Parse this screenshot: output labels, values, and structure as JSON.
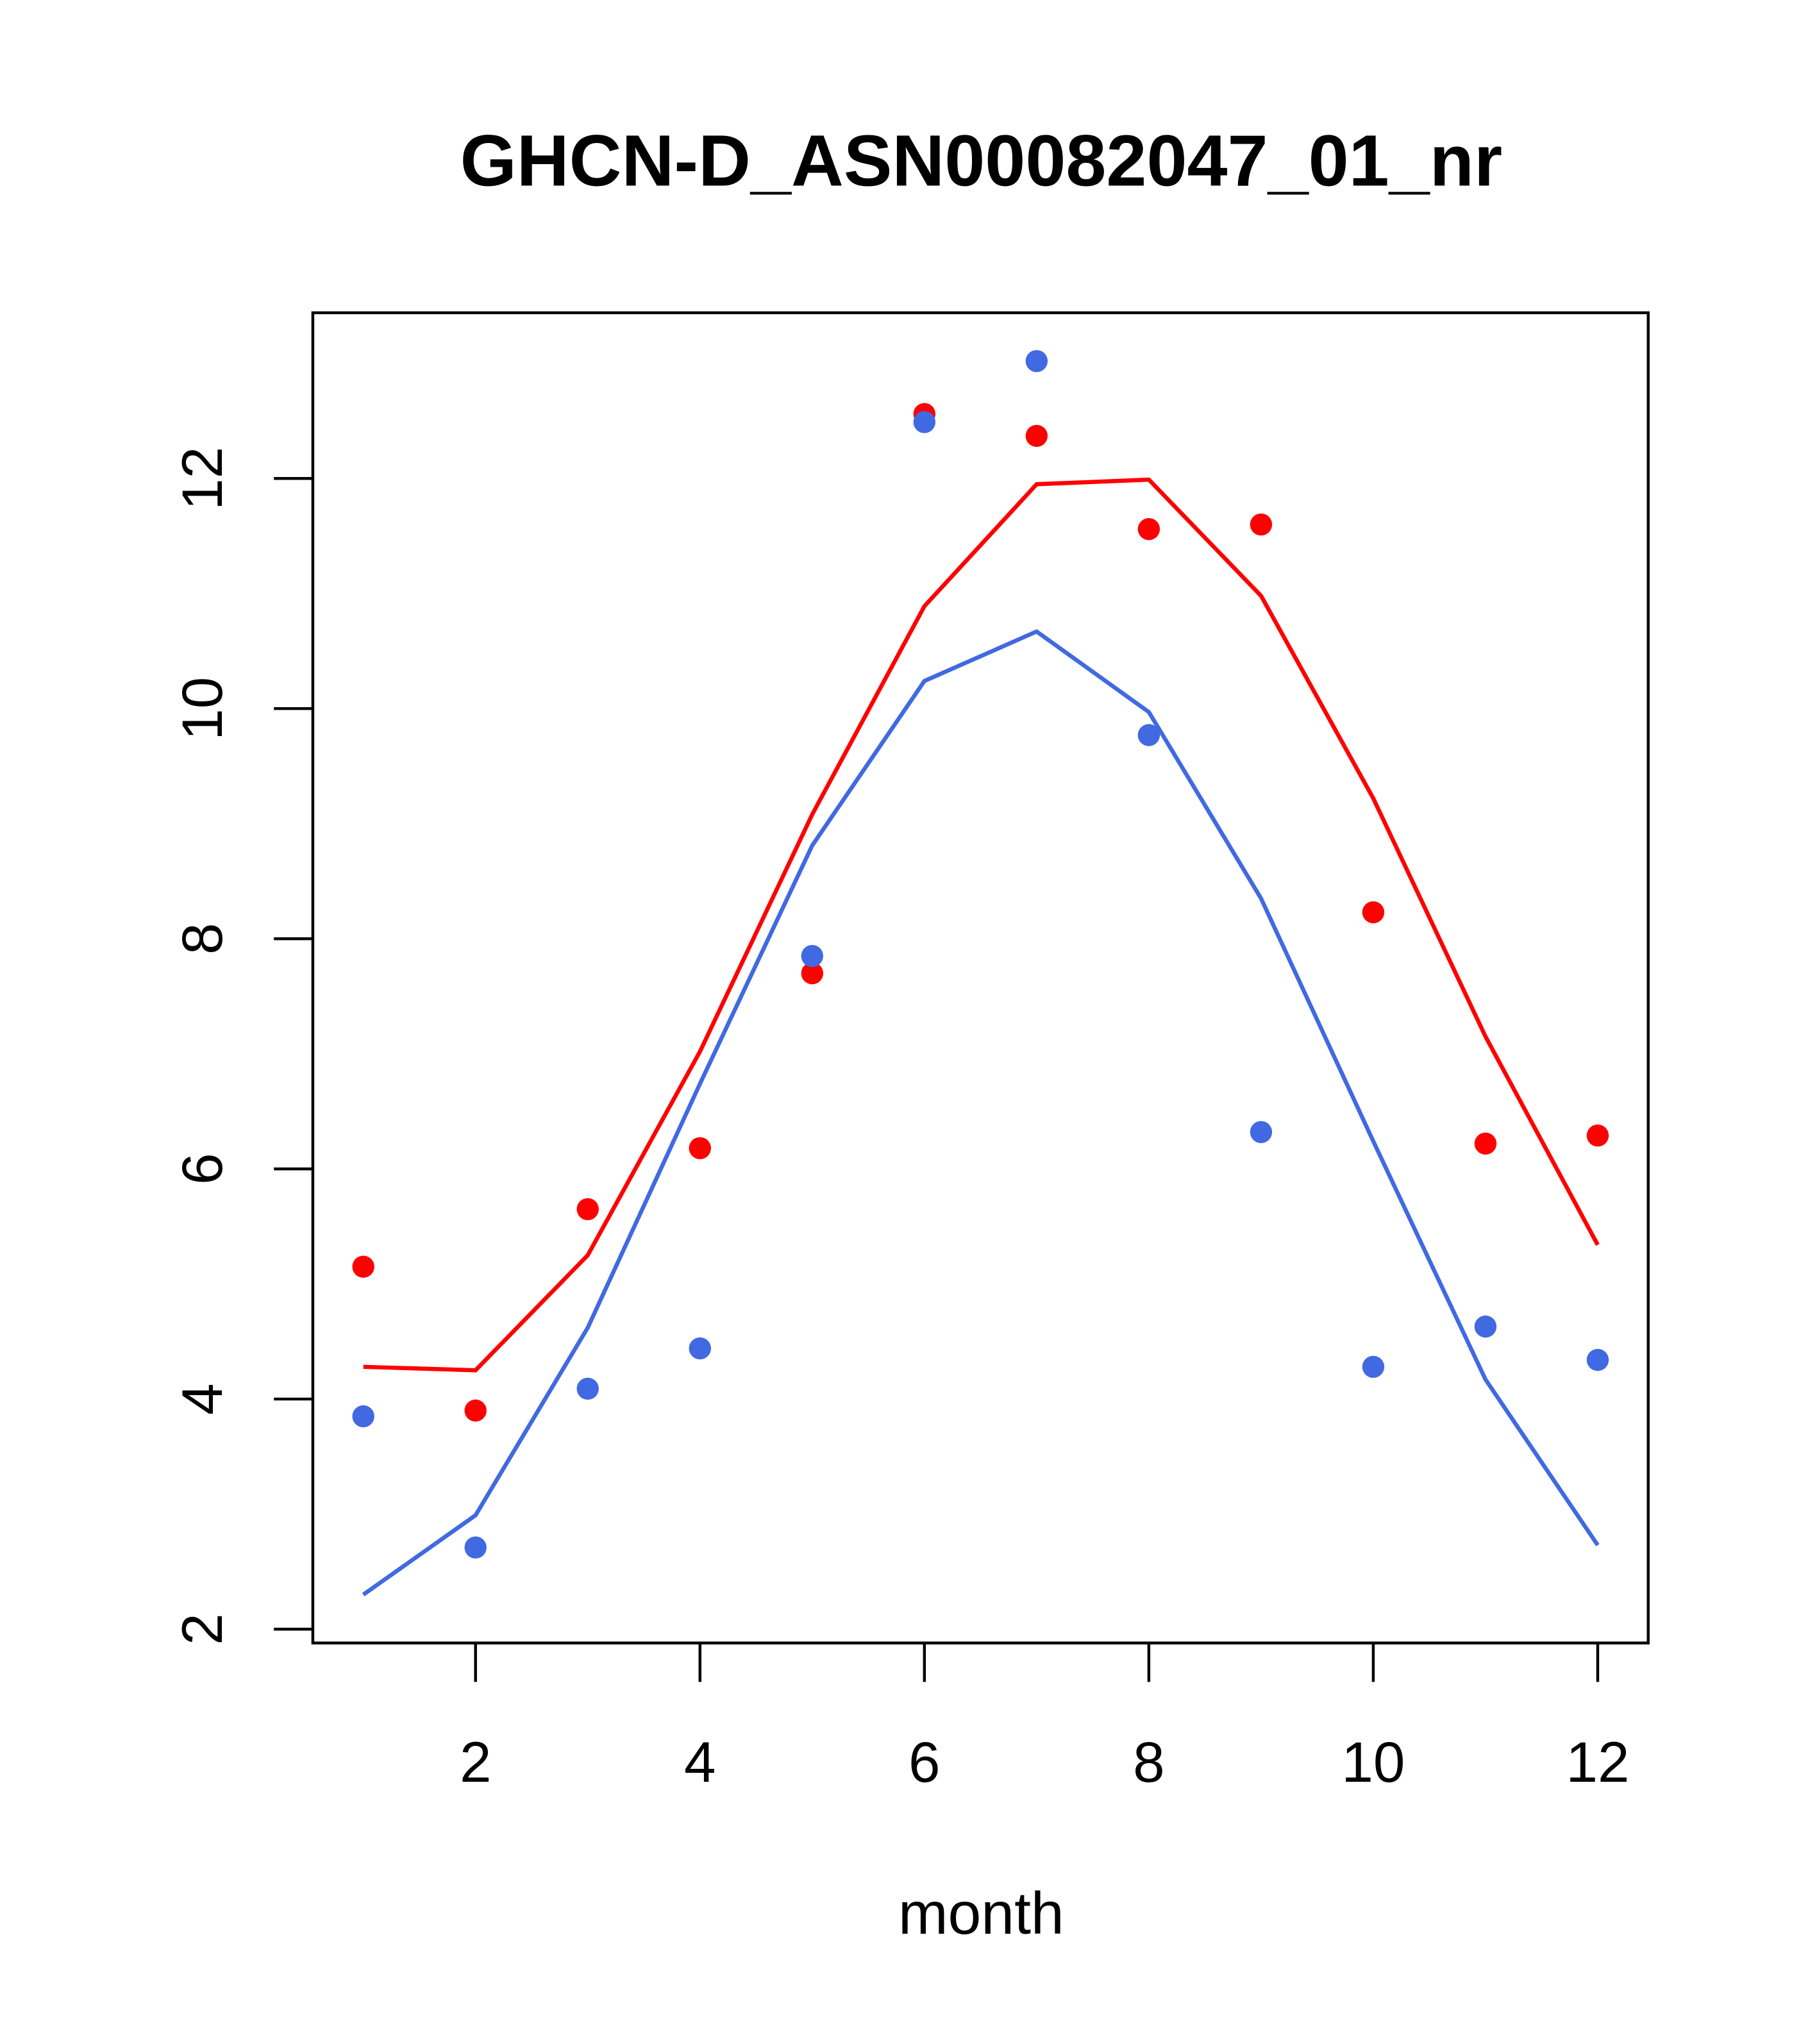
{
  "chart_data": {
    "type": "line",
    "title": "GHCN-D_ASN00082047_01_nr",
    "xlabel": "month",
    "ylabel": "",
    "xlim": [
      0.55,
      12.45
    ],
    "ylim": [
      1.88,
      13.44
    ],
    "xticks": [
      2,
      4,
      6,
      8,
      10,
      12
    ],
    "yticks": [
      2,
      4,
      6,
      8,
      10,
      12
    ],
    "grid": false,
    "x": [
      1,
      2,
      3,
      4,
      5,
      6,
      7,
      8,
      9,
      10,
      11,
      12
    ],
    "series": [
      {
        "name": "red points",
        "kind": "points",
        "color": "#FF0000",
        "values": [
          5.15,
          3.9,
          5.65,
          6.18,
          7.7,
          12.56,
          12.37,
          11.56,
          11.6,
          8.23,
          6.22,
          6.29
        ]
      },
      {
        "name": "blue points",
        "kind": "points",
        "color": "#4169E1",
        "values": [
          3.85,
          2.71,
          4.09,
          4.44,
          7.85,
          12.49,
          13.02,
          9.77,
          6.32,
          4.28,
          4.63,
          4.34
        ]
      },
      {
        "name": "red line",
        "kind": "line",
        "color": "#FF0000",
        "values": [
          4.28,
          4.25,
          5.25,
          7.02,
          9.08,
          10.89,
          11.95,
          11.99,
          10.98,
          9.22,
          7.15,
          5.34
        ]
      },
      {
        "name": "blue line",
        "kind": "line",
        "color": "#4169E1",
        "values": [
          2.3,
          2.99,
          4.62,
          6.74,
          8.81,
          10.24,
          10.67,
          9.97,
          8.35,
          6.24,
          4.17,
          2.73
        ]
      }
    ]
  }
}
